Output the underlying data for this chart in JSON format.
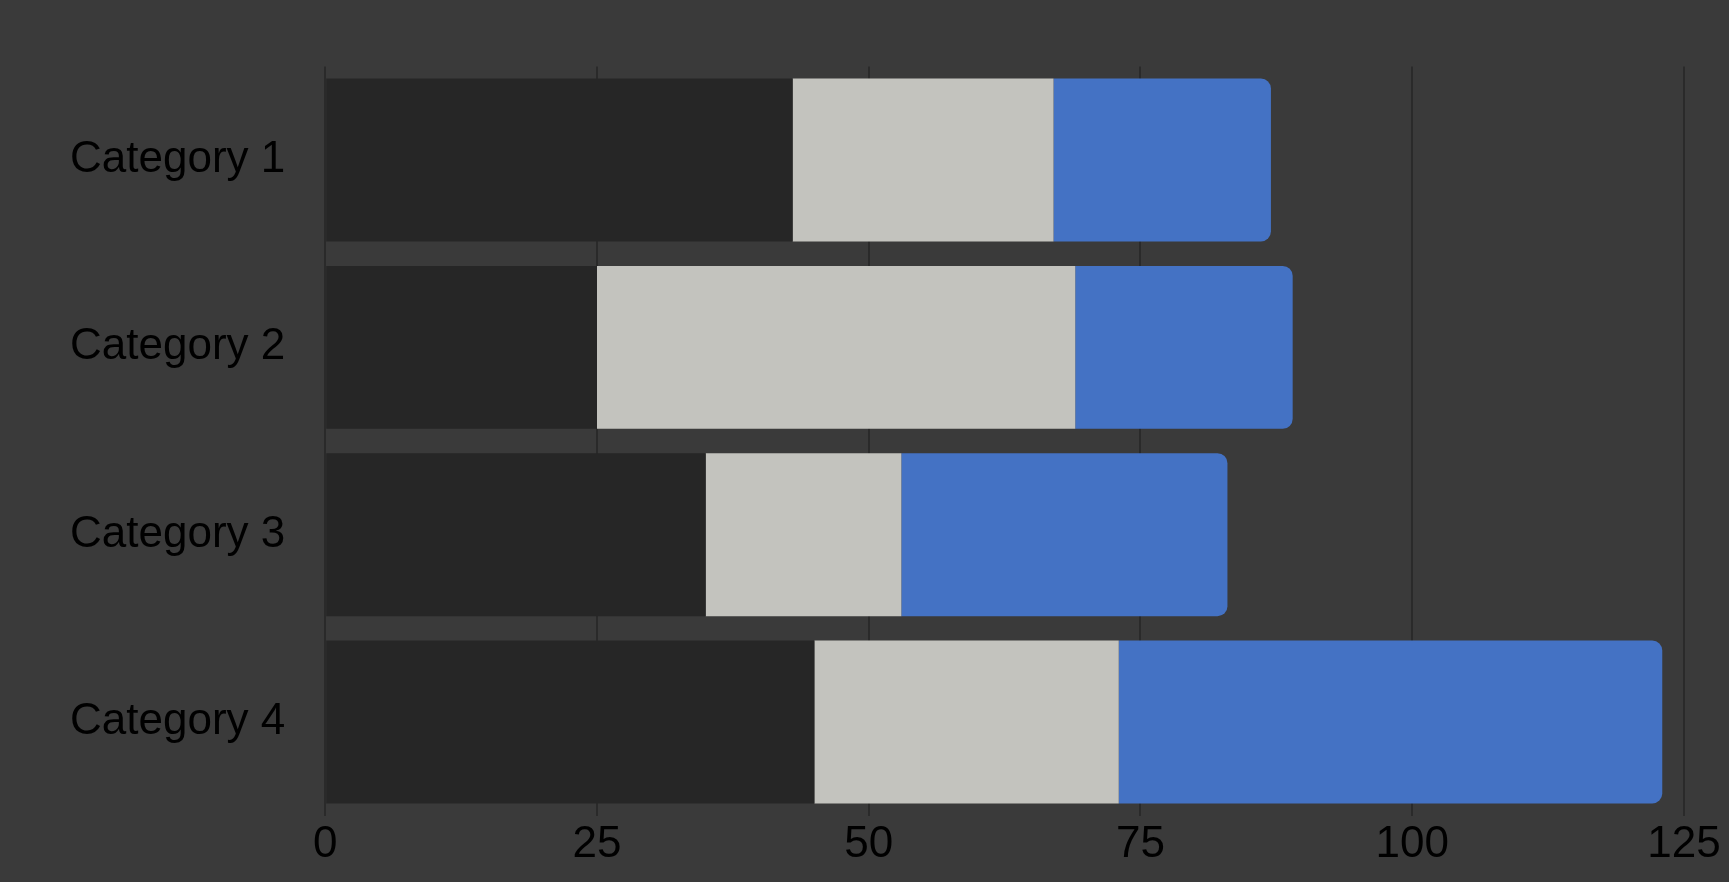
{
  "chart_data": {
    "type": "bar",
    "orientation": "horizontal",
    "stacked": true,
    "categories": [
      "Category 1",
      "Category 2",
      "Category 3",
      "Category 4"
    ],
    "series": [
      {
        "color": "#262626",
        "values": [
          43,
          25,
          35,
          45
        ]
      },
      {
        "color": "#c3c3be",
        "values": [
          24,
          44,
          18,
          28
        ]
      },
      {
        "color": "#4472c4",
        "values": [
          20,
          20,
          30,
          50
        ]
      }
    ],
    "xlim": [
      0,
      125
    ],
    "xticks": [
      0,
      25,
      50,
      75,
      100,
      125
    ],
    "grid": "x",
    "legend": false
  }
}
